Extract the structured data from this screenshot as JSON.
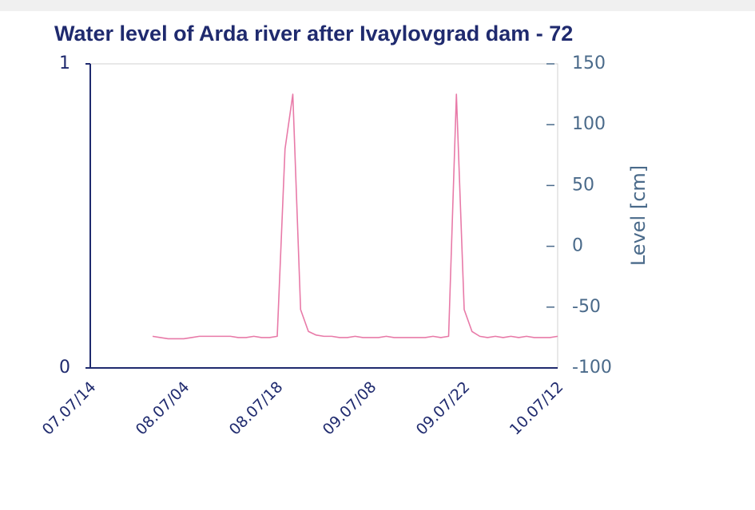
{
  "chart_data": {
    "type": "line",
    "title": "Water level of Arda river after Ivaylovgrad dam - 72",
    "y2label": "Level [cm]",
    "categories": [
      "07.07/14",
      null,
      null,
      null,
      null,
      null,
      null,
      null,
      null,
      null,
      null,
      null,
      "08.07/04",
      null,
      null,
      null,
      null,
      null,
      null,
      null,
      null,
      null,
      null,
      null,
      "08.07/18",
      null,
      null,
      null,
      null,
      null,
      null,
      null,
      null,
      null,
      null,
      null,
      "09.07/08",
      null,
      null,
      null,
      null,
      null,
      null,
      null,
      null,
      null,
      null,
      null,
      "09.07/22",
      null,
      null,
      null,
      null,
      null,
      null,
      null,
      null,
      null,
      null,
      null,
      "10.07/12"
    ],
    "series": [
      {
        "color": "#e87aa8",
        "axis": "y2",
        "values": [
          null,
          null,
          null,
          null,
          null,
          null,
          null,
          null,
          -74,
          -75,
          -76,
          -76,
          -76,
          -75,
          -74,
          -74,
          -74,
          -74,
          -74,
          -75,
          -75,
          -74,
          -75,
          -75,
          -74,
          80,
          125,
          -52,
          -70,
          -73,
          -74,
          -74,
          -75,
          -75,
          -74,
          -75,
          -75,
          -75,
          -74,
          -75,
          -75,
          -75,
          -75,
          -75,
          -74,
          -75,
          -74,
          125,
          -52,
          -70,
          -74,
          -75,
          -74,
          -75,
          -74,
          -75,
          -74,
          -75,
          -75,
          -75,
          -74
        ]
      }
    ],
    "ylim": [
      0,
      1
    ],
    "yticks": [
      0,
      1
    ],
    "y2lim": [
      -100,
      150
    ],
    "y2ticks": [
      -100,
      -50,
      0,
      50,
      100,
      150
    ]
  }
}
